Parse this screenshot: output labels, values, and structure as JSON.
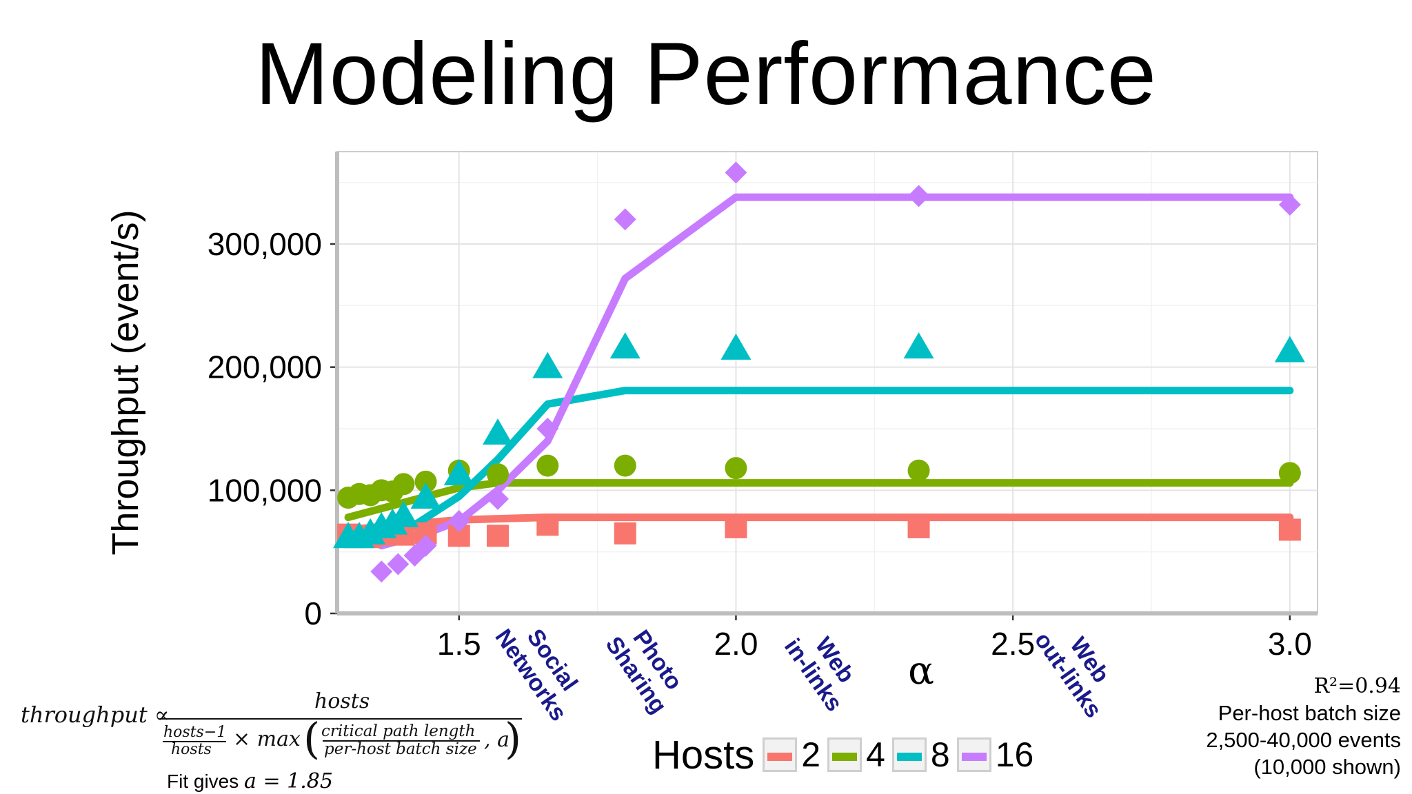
{
  "slide": {
    "title": "Modeling Performance"
  },
  "chart_data": {
    "type": "scatter",
    "xlabel": "α",
    "ylabel": "Throughput (event/s)",
    "xlim": [
      1.28,
      3.05
    ],
    "ylim": [
      0,
      375000
    ],
    "x_ticks": [
      1.5,
      2.0,
      2.5,
      3.0
    ],
    "x_tick_labels": [
      "1.5",
      "2.0",
      "2.5",
      "3.0"
    ],
    "y_ticks": [
      0,
      100000,
      200000,
      300000
    ],
    "y_tick_labels": [
      "0",
      "100,000",
      "200,000",
      "300,000"
    ],
    "grid": true,
    "legend": {
      "title": "Hosts",
      "position": "bottom"
    },
    "series": [
      {
        "name": "2",
        "color": "#f8766d",
        "marker": "square",
        "points": [
          [
            1.3,
            64000
          ],
          [
            1.32,
            63000
          ],
          [
            1.34,
            62000
          ],
          [
            1.36,
            64000
          ],
          [
            1.38,
            65000
          ],
          [
            1.4,
            64000
          ],
          [
            1.44,
            65000
          ],
          [
            1.5,
            63000
          ],
          [
            1.57,
            63000
          ],
          [
            1.66,
            72000
          ],
          [
            1.8,
            65000
          ],
          [
            2.0,
            70000
          ],
          [
            2.33,
            70000
          ],
          [
            3.0,
            68000
          ]
        ],
        "fit": [
          [
            1.3,
            68000
          ],
          [
            1.4,
            72000
          ],
          [
            1.5,
            76000
          ],
          [
            1.66,
            78000
          ],
          [
            1.8,
            78000
          ],
          [
            3.0,
            78000
          ]
        ]
      },
      {
        "name": "4",
        "color": "#7cae00",
        "marker": "circle",
        "points": [
          [
            1.3,
            94000
          ],
          [
            1.32,
            97000
          ],
          [
            1.34,
            96000
          ],
          [
            1.36,
            100000
          ],
          [
            1.38,
            99000
          ],
          [
            1.4,
            105000
          ],
          [
            1.44,
            107000
          ],
          [
            1.5,
            116000
          ],
          [
            1.57,
            113000
          ],
          [
            1.66,
            120000
          ],
          [
            1.8,
            120000
          ],
          [
            2.0,
            118000
          ],
          [
            2.33,
            116000
          ],
          [
            3.0,
            114000
          ]
        ],
        "fit": [
          [
            1.3,
            78000
          ],
          [
            1.4,
            90000
          ],
          [
            1.5,
            102000
          ],
          [
            1.57,
            106000
          ],
          [
            1.66,
            106000
          ],
          [
            3.0,
            106000
          ]
        ]
      },
      {
        "name": "8",
        "color": "#00bfc4",
        "marker": "triangle",
        "points": [
          [
            1.3,
            62000
          ],
          [
            1.32,
            62000
          ],
          [
            1.34,
            65000
          ],
          [
            1.36,
            70000
          ],
          [
            1.38,
            73000
          ],
          [
            1.4,
            79000
          ],
          [
            1.44,
            94000
          ],
          [
            1.5,
            113000
          ],
          [
            1.57,
            146000
          ],
          [
            1.66,
            200000
          ],
          [
            1.8,
            216000
          ],
          [
            2.0,
            215000
          ],
          [
            2.33,
            216000
          ],
          [
            3.0,
            213000
          ]
        ],
        "fit": [
          [
            1.3,
            58000
          ],
          [
            1.4,
            66000
          ],
          [
            1.5,
            95000
          ],
          [
            1.57,
            125000
          ],
          [
            1.66,
            170000
          ],
          [
            1.8,
            181000
          ],
          [
            3.0,
            181000
          ]
        ]
      },
      {
        "name": "16",
        "color": "#c77cff",
        "marker": "diamond",
        "points": [
          [
            1.36,
            34000
          ],
          [
            1.39,
            40000
          ],
          [
            1.42,
            47000
          ],
          [
            1.44,
            55000
          ],
          [
            1.5,
            75000
          ],
          [
            1.57,
            93000
          ],
          [
            1.66,
            150000
          ],
          [
            1.8,
            320000
          ],
          [
            2.0,
            358000
          ],
          [
            2.33,
            339000
          ],
          [
            3.0,
            332000
          ]
        ],
        "fit": [
          [
            1.36,
            55000
          ],
          [
            1.44,
            65000
          ],
          [
            1.5,
            75000
          ],
          [
            1.57,
            100000
          ],
          [
            1.66,
            140000
          ],
          [
            1.8,
            272000
          ],
          [
            2.0,
            338000
          ],
          [
            3.0,
            338000
          ]
        ]
      }
    ],
    "annotations": [
      {
        "lines": [
          "Social",
          "Networks"
        ],
        "x": 1.65
      },
      {
        "lines": [
          "Photo",
          "Sharing"
        ],
        "x": 1.84
      },
      {
        "lines": [
          "Web",
          "in-links"
        ],
        "x": 2.16
      },
      {
        "lines": [
          "Web",
          "out-links"
        ],
        "x": 2.62
      }
    ]
  },
  "formula": {
    "lhs": "throughput ∝",
    "numerator": "hosts",
    "den_frac_num": "hosts−1",
    "den_frac_den": "hosts",
    "den_mid": "× max",
    "paren_left": "(",
    "cp_num": "critical path length",
    "cp_den": "per-host batch size",
    "tail": ", a",
    "paren_right": ")"
  },
  "fit": {
    "label": "Fit gives",
    "value": "a = 1.85"
  },
  "stats": {
    "r2": "R²=0.94",
    "line1": "Per-host batch size",
    "line2": "2,500-40,000 events",
    "line3": "(10,000 shown)"
  }
}
